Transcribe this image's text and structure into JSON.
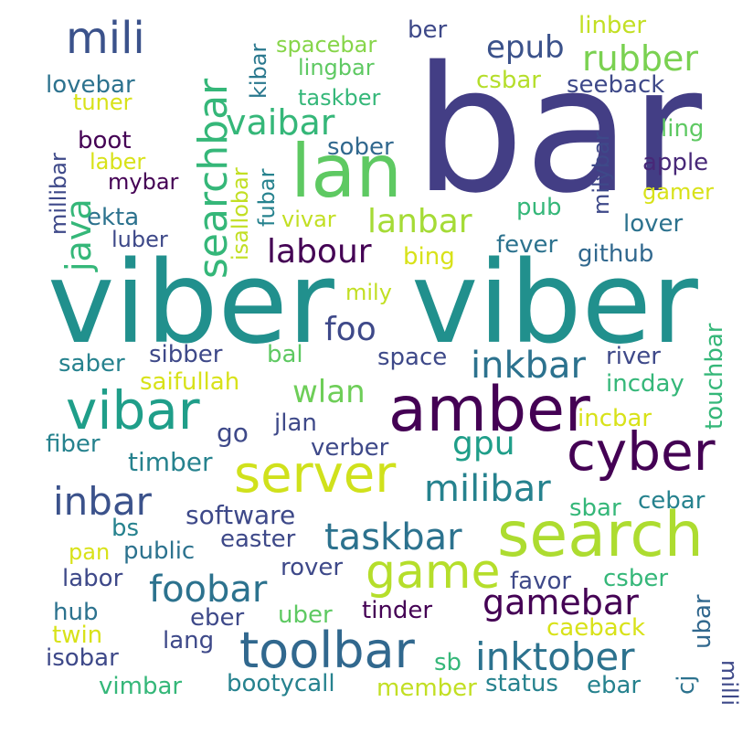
{
  "words": [
    {
      "text": "bar",
      "color": "#433e85"
    },
    {
      "text": "viber",
      "color": "#21908d"
    },
    {
      "text": "viber",
      "color": "#21908d"
    },
    {
      "text": "lan",
      "color": "#5ec962"
    },
    {
      "text": "amber",
      "color": "#440154"
    },
    {
      "text": "search",
      "color": "#addc30"
    },
    {
      "text": "cyber",
      "color": "#440154"
    },
    {
      "text": "vibar",
      "color": "#1f9e89"
    },
    {
      "text": "server",
      "color": "#d0e11c"
    },
    {
      "text": "toolbar",
      "color": "#31688e"
    },
    {
      "text": "game",
      "color": "#b5de2b"
    },
    {
      "text": "searchbar",
      "color": "#35b779"
    },
    {
      "text": "mili",
      "color": "#3b528b"
    },
    {
      "text": "inktober",
      "color": "#2c728e"
    },
    {
      "text": "gamebar",
      "color": "#440154"
    },
    {
      "text": "foobar",
      "color": "#2c728e"
    },
    {
      "text": "taskbar",
      "color": "#2c728e"
    },
    {
      "text": "inbar",
      "color": "#3b528b"
    },
    {
      "text": "milibar",
      "color": "#26828e"
    },
    {
      "text": "inkbar",
      "color": "#2c728e"
    },
    {
      "text": "rubber",
      "color": "#7ad151"
    },
    {
      "text": "epub",
      "color": "#3b528b"
    },
    {
      "text": "vaibar",
      "color": "#35b779"
    },
    {
      "text": "lanbar",
      "color": "#a5db36"
    },
    {
      "text": "labour",
      "color": "#440154"
    },
    {
      "text": "java",
      "color": "#35b779"
    },
    {
      "text": "foo",
      "color": "#3e4989"
    },
    {
      "text": "gpu",
      "color": "#1f9e89"
    },
    {
      "text": "wlan",
      "color": "#6ece58"
    },
    {
      "text": "spacebar",
      "color": "#86d549"
    },
    {
      "text": "lingbar",
      "color": "#5ec962"
    },
    {
      "text": "taskber",
      "color": "#35b779"
    },
    {
      "text": "csbar",
      "color": "#b5de2b"
    },
    {
      "text": "seeback",
      "color": "#3e4989"
    },
    {
      "text": "linber",
      "color": "#c2df23"
    },
    {
      "text": "ber",
      "color": "#3e4989"
    },
    {
      "text": "kibar",
      "color": "#2a788e"
    },
    {
      "text": "lovebar",
      "color": "#2c728e"
    },
    {
      "text": "tuner",
      "color": "#d8e219"
    },
    {
      "text": "millibar",
      "color": "#3e4989"
    },
    {
      "text": "boot",
      "color": "#440154"
    },
    {
      "text": "laber",
      "color": "#d8e219"
    },
    {
      "text": "mybar",
      "color": "#440154"
    },
    {
      "text": "ekta",
      "color": "#2c728e"
    },
    {
      "text": "luber",
      "color": "#3e4989"
    },
    {
      "text": "sober",
      "color": "#31688e"
    },
    {
      "text": "ling",
      "color": "#5ec962"
    },
    {
      "text": "apple",
      "color": "#482878"
    },
    {
      "text": "gamer",
      "color": "#d8e219"
    },
    {
      "text": "milybar",
      "color": "#3e4989"
    },
    {
      "text": "pub",
      "color": "#35b779"
    },
    {
      "text": "lover",
      "color": "#2c728e"
    },
    {
      "text": "fubar",
      "color": "#26828e"
    },
    {
      "text": "isallobar",
      "color": "#c2df23"
    },
    {
      "text": "vivar",
      "color": "#c2df23"
    },
    {
      "text": "bing",
      "color": "#d8e219"
    },
    {
      "text": "fever",
      "color": "#2c728e"
    },
    {
      "text": "github",
      "color": "#31688e"
    },
    {
      "text": "mily",
      "color": "#c2df23"
    },
    {
      "text": "touchbar",
      "color": "#35b779"
    },
    {
      "text": "saber",
      "color": "#26828e"
    },
    {
      "text": "sibber",
      "color": "#3e4989"
    },
    {
      "text": "bal",
      "color": "#5ec962"
    },
    {
      "text": "space",
      "color": "#3e4989"
    },
    {
      "text": "river",
      "color": "#3e4989"
    },
    {
      "text": "saifullah",
      "color": "#d8e219"
    },
    {
      "text": "incday",
      "color": "#35b779"
    },
    {
      "text": "jlan",
      "color": "#3e4989"
    },
    {
      "text": "incbar",
      "color": "#d8e219"
    },
    {
      "text": "go",
      "color": "#3e4989"
    },
    {
      "text": "fiber",
      "color": "#26828e"
    },
    {
      "text": "verber",
      "color": "#3e4989"
    },
    {
      "text": "timber",
      "color": "#26828e"
    },
    {
      "text": "software",
      "color": "#3e4989"
    },
    {
      "text": "sbar",
      "color": "#35b779"
    },
    {
      "text": "cebar",
      "color": "#26828e"
    },
    {
      "text": "bs",
      "color": "#26828e"
    },
    {
      "text": "easter",
      "color": "#3e4989"
    },
    {
      "text": "pan",
      "color": "#d8e219"
    },
    {
      "text": "public",
      "color": "#2c728e"
    },
    {
      "text": "rover",
      "color": "#3e4989"
    },
    {
      "text": "favor",
      "color": "#3e4989"
    },
    {
      "text": "csber",
      "color": "#35b779"
    },
    {
      "text": "labor",
      "color": "#3e4989"
    },
    {
      "text": "hub",
      "color": "#2c728e"
    },
    {
      "text": "eber",
      "color": "#3e4989"
    },
    {
      "text": "uber",
      "color": "#5ec962"
    },
    {
      "text": "tinder",
      "color": "#440154"
    },
    {
      "text": "caeback",
      "color": "#d8e219"
    },
    {
      "text": "ubar",
      "color": "#31688e"
    },
    {
      "text": "milli",
      "color": "#3e4989"
    },
    {
      "text": "cj",
      "color": "#2c728e"
    },
    {
      "text": "twin",
      "color": "#d8e219"
    },
    {
      "text": "lang",
      "color": "#3e4989"
    },
    {
      "text": "isobar",
      "color": "#3e4989"
    },
    {
      "text": "sb",
      "color": "#35b779"
    },
    {
      "text": "vimbar",
      "color": "#35b779"
    },
    {
      "text": "bootycall",
      "color": "#26828e"
    },
    {
      "text": "member",
      "color": "#c2df23"
    },
    {
      "text": "status",
      "color": "#26828e"
    },
    {
      "text": "ebar",
      "color": "#26828e"
    }
  ]
}
